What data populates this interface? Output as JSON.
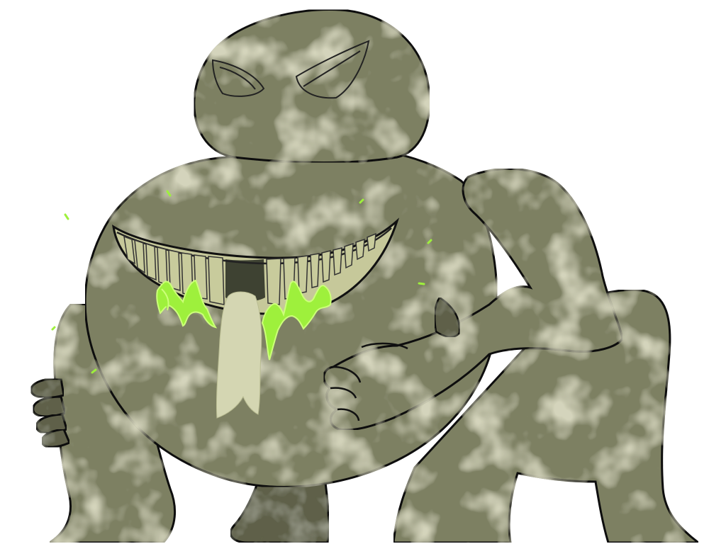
{
  "artwork": {
    "subject": "monster-creature",
    "colors": {
      "background": "#ffffff",
      "skin": "#7d8062",
      "skin_light": "#a6a67d",
      "skin_dark": "#5e6048",
      "outline": "#111111",
      "teeth": "#c8cb9c",
      "mouth_dark": "#3e4232",
      "tongue": "#d2d4b0",
      "slime": "#9ef03c",
      "slime_light": "#ccff7a"
    }
  }
}
